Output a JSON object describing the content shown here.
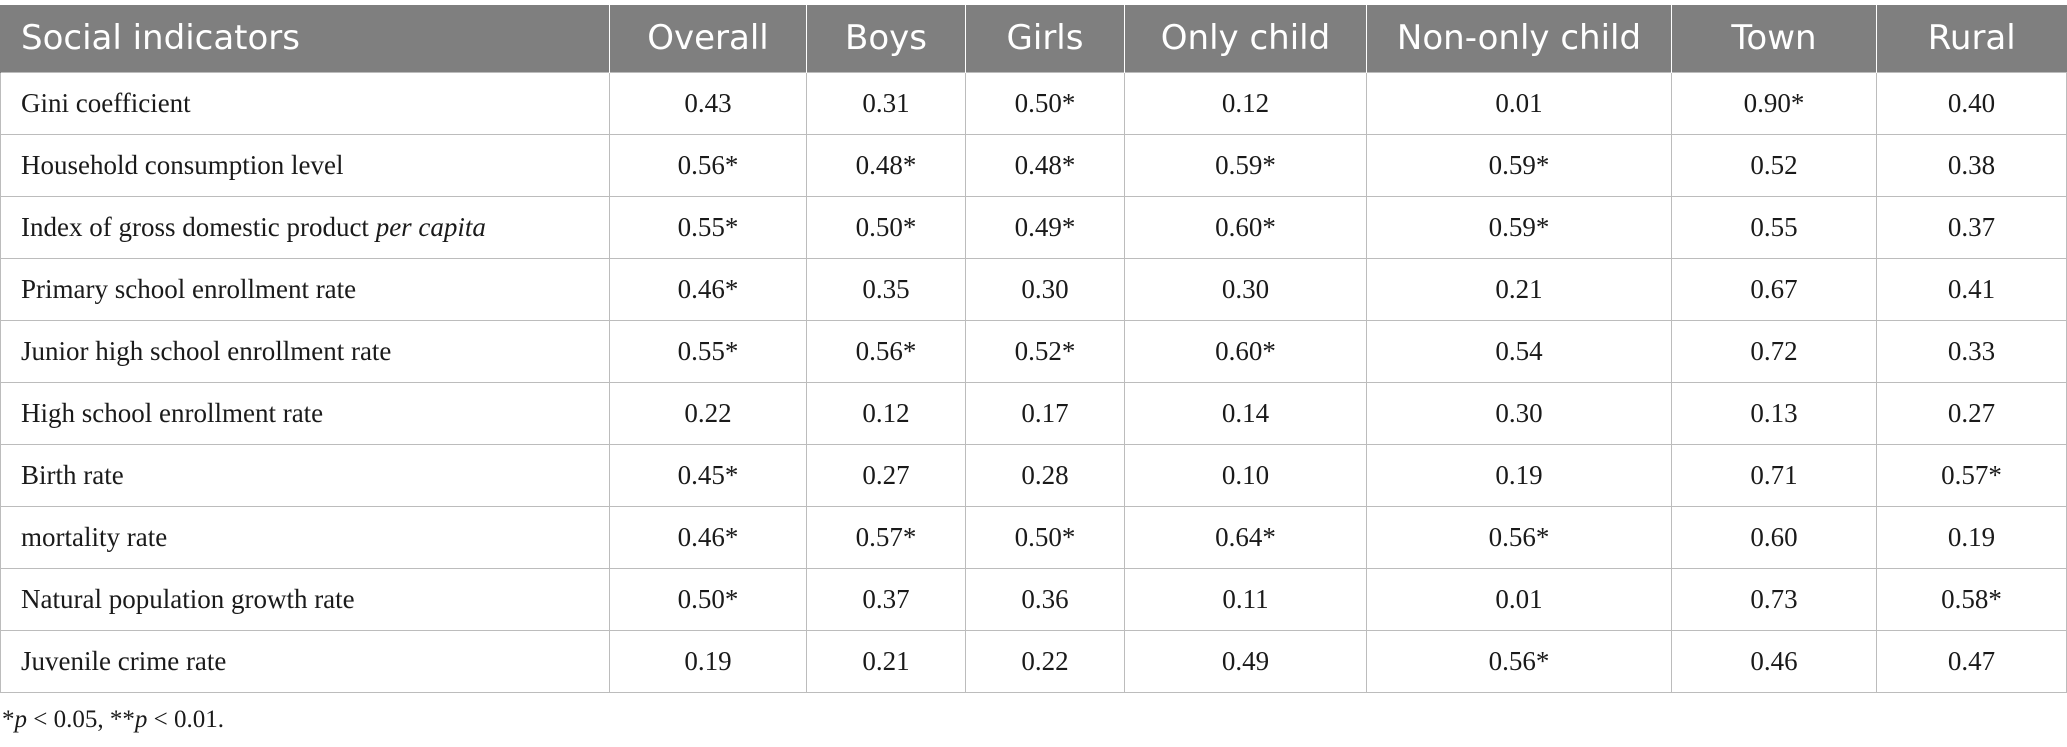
{
  "table": {
    "columns": [
      "Social indicators",
      "Overall",
      "Boys",
      "Girls",
      "Only child",
      "Non-only child",
      "Town",
      "Rural"
    ],
    "rows": [
      {
        "label": "Gini coefficient",
        "label_main": "Gini coefficient",
        "label_italic": "",
        "values": [
          "0.43",
          "0.31",
          "0.50*",
          "0.12",
          "0.01",
          "0.90*",
          "0.40"
        ]
      },
      {
        "label": "Household consumption level",
        "label_main": "Household consumption level",
        "label_italic": "",
        "values": [
          "0.56*",
          "0.48*",
          "0.48*",
          "0.59*",
          "0.59*",
          "0.52",
          "0.38"
        ]
      },
      {
        "label": "Index of gross domestic product per capita",
        "label_main": "Index of gross domestic product ",
        "label_italic": "per capita",
        "values": [
          "0.55*",
          "0.50*",
          "0.49*",
          "0.60*",
          "0.59*",
          "0.55",
          "0.37"
        ]
      },
      {
        "label": "Primary school enrollment rate",
        "label_main": "Primary school enrollment rate",
        "label_italic": "",
        "values": [
          "0.46*",
          "0.35",
          "0.30",
          "0.30",
          "0.21",
          "0.67",
          "0.41"
        ]
      },
      {
        "label": "Junior high school enrollment rate",
        "label_main": "Junior high school enrollment rate",
        "label_italic": "",
        "values": [
          "0.55*",
          "0.56*",
          "0.52*",
          "0.60*",
          "0.54",
          "0.72",
          "0.33"
        ]
      },
      {
        "label": "High school enrollment rate",
        "label_main": "High school enrollment rate",
        "label_italic": "",
        "values": [
          "0.22",
          "0.12",
          "0.17",
          "0.14",
          "0.30",
          "0.13",
          "0.27"
        ]
      },
      {
        "label": "Birth rate",
        "label_main": "Birth rate",
        "label_italic": "",
        "values": [
          "0.45*",
          "0.27",
          "0.28",
          "0.10",
          "0.19",
          "0.71",
          "0.57*"
        ]
      },
      {
        "label": "mortality rate",
        "label_main": "mortality rate",
        "label_italic": "",
        "values": [
          "0.46*",
          "0.57*",
          "0.50*",
          "0.64*",
          "0.56*",
          "0.60",
          "0.19"
        ]
      },
      {
        "label": "Natural population growth rate",
        "label_main": "Natural population growth rate",
        "label_italic": "",
        "values": [
          "0.50*",
          "0.37",
          "0.36",
          "0.11",
          "0.01",
          "0.73",
          "0.58*"
        ]
      },
      {
        "label": "Juvenile crime rate",
        "label_main": "Juvenile crime rate",
        "label_italic": "",
        "values": [
          "0.19",
          "0.21",
          "0.22",
          "0.49",
          "0.56*",
          "0.46",
          "0.47"
        ]
      }
    ]
  },
  "footnote": {
    "text": "*p < 0.05, **p < 0.01.",
    "star1": "*",
    "p1": "p",
    "thr1": " < 0.05, ",
    "star2": "**",
    "p2": "p",
    "thr2": " < 0.01."
  },
  "colors": {
    "header_bg": "#7f7f7f",
    "header_text": "#ffffff",
    "grid": "#bcbcbc"
  }
}
